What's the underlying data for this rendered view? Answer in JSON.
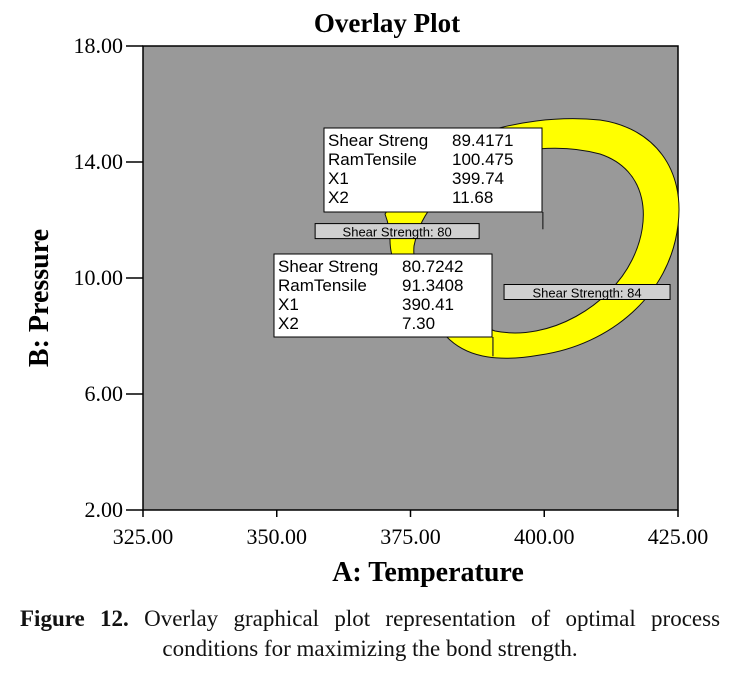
{
  "chart_data": {
    "type": "contour",
    "title": "Overlay Plot",
    "xlabel": "A: Temperature",
    "ylabel": "B: Pressure",
    "xlim": [
      325,
      425
    ],
    "ylim": [
      2,
      18
    ],
    "x_ticks": [
      "325.00",
      "350.00",
      "375.00",
      "400.00",
      "425.00"
    ],
    "y_ticks": [
      "2.00",
      "6.00",
      "10.00",
      "14.00",
      "18.00"
    ],
    "background_color": "#999999",
    "region_color": "#ffff00",
    "contours": [
      {
        "label": "Shear Strength: 80",
        "label_x": 372.5,
        "label_y": 11.6
      },
      {
        "label": "Shear Strength: 84",
        "label_x": 408,
        "label_y": 9.5
      }
    ],
    "flags": [
      {
        "x": 399.74,
        "y": 11.68,
        "rows": [
          {
            "name": "Shear Streng",
            "value": "89.4171"
          },
          {
            "name": "RamTensile",
            "value": "100.475"
          },
          {
            "name": "X1",
            "value": "399.74"
          },
          {
            "name": "X2",
            "value": "11.68"
          }
        ]
      },
      {
        "x": 390.41,
        "y": 7.3,
        "rows": [
          {
            "name": "Shear Streng",
            "value": "80.7242"
          },
          {
            "name": "RamTensile",
            "value": "91.3408"
          },
          {
            "name": "X1",
            "value": "390.41"
          },
          {
            "name": "X2",
            "value": "7.30"
          }
        ]
      }
    ]
  },
  "caption": {
    "label": "Figure 12.",
    "text": "Overlay graphical plot representation of optimal process conditions for maximizing the bond strength."
  }
}
